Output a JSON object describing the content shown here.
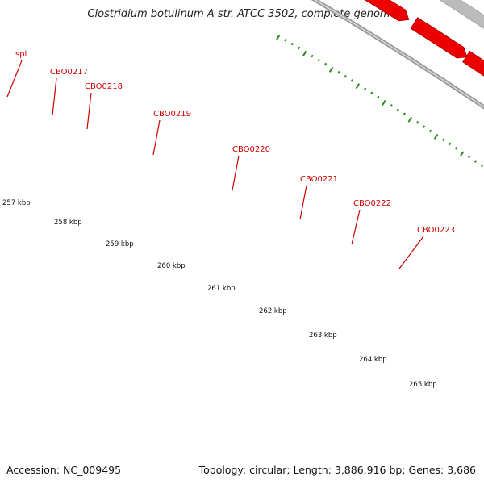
{
  "title": "Clostridium botulinum A str. ATCC 3502, complete genome",
  "footer": {
    "accession": "Accession: NC_009495",
    "topology": "Topology: circular; Length: 3,886,916 bp; Genes: 3,686"
  },
  "colors": {
    "backbone": "#8a8a8a",
    "cds": "#ee0000",
    "tick": "#2a8a1a",
    "label": "#cc0000"
  },
  "scale_labels": [
    "257 kbp",
    "258 kbp",
    "259 kbp",
    "260 kbp",
    "261 kbp",
    "262 kbp",
    "263 kbp",
    "264 kbp",
    "265 kbp"
  ],
  "genes": [
    {
      "name": "spl",
      "color": "#e8338e"
    },
    {
      "name": "CBO0217",
      "color": "#f08080"
    },
    {
      "name": "CBO0218",
      "color": "#555555"
    },
    {
      "name": "CBO0219",
      "color": "#bbbbbb"
    },
    {
      "name": "CBO0220",
      "color": "#bbbbbb"
    },
    {
      "name": "CBO0221",
      "color": "#bbbbbb"
    },
    {
      "name": "CBO0222",
      "color": "#22cccc"
    },
    {
      "name": "CBO0223",
      "color": "#ff9900"
    }
  ]
}
